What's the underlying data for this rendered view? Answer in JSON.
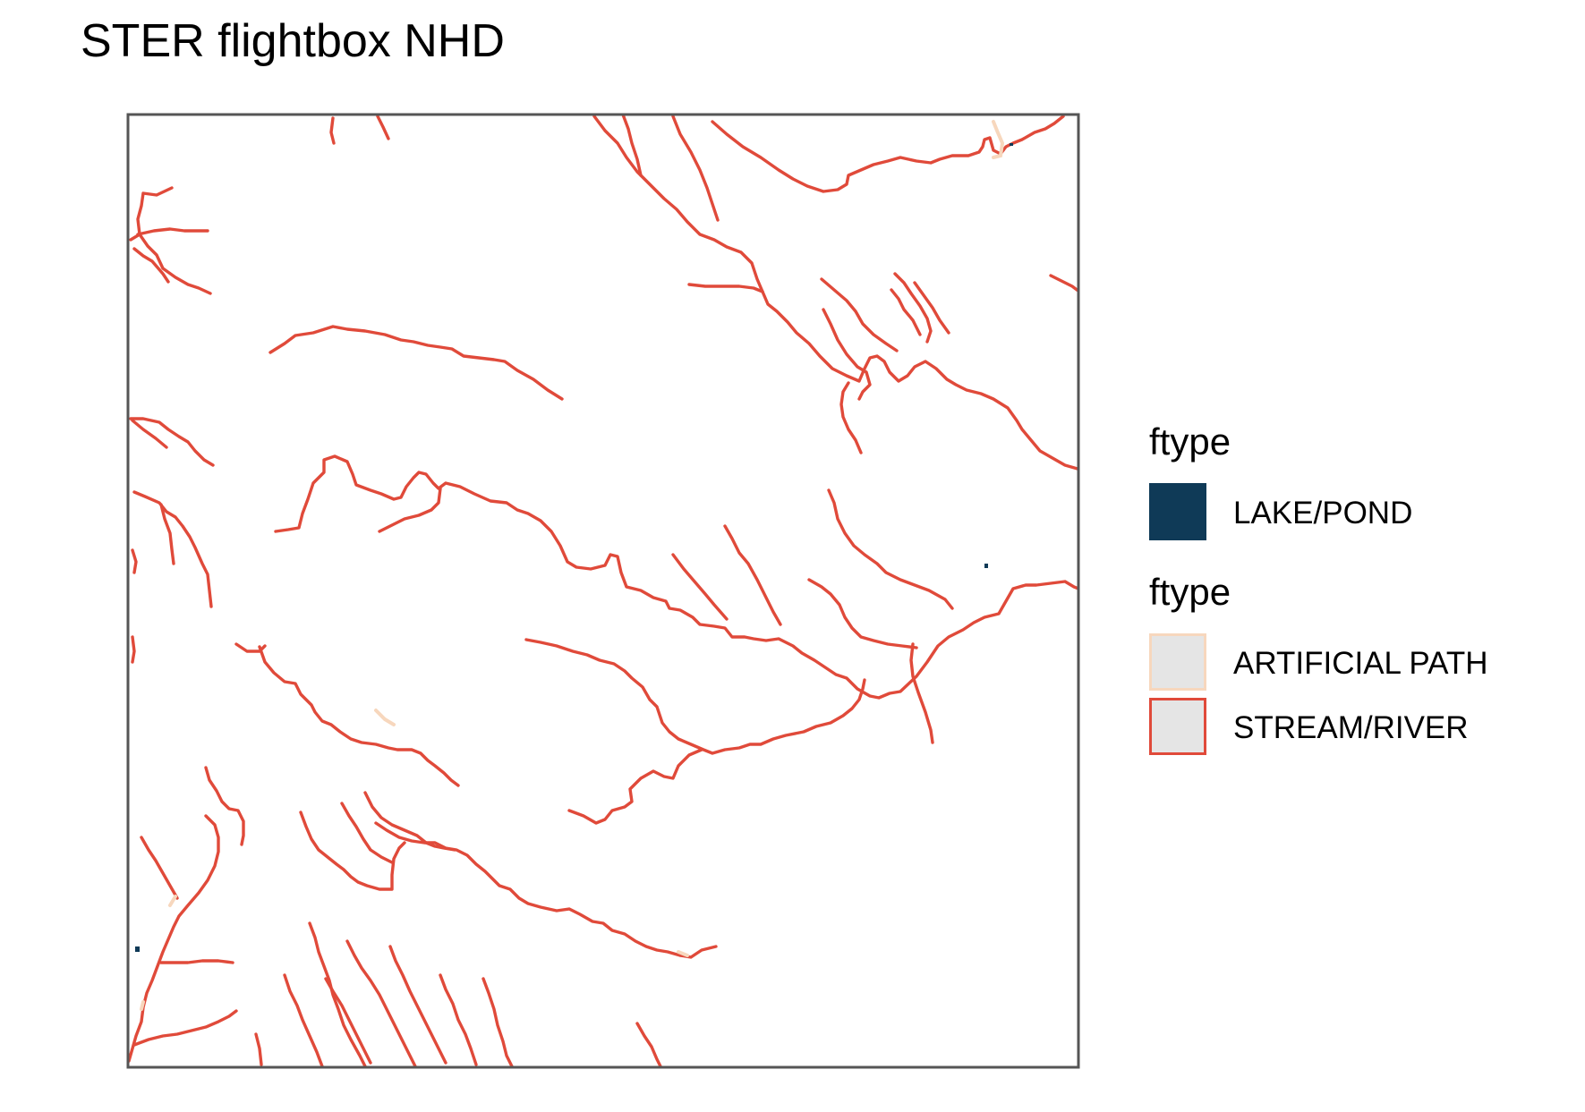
{
  "title": "STER flightbox NHD",
  "legend": {
    "groups": [
      {
        "title": "ftype",
        "items": [
          {
            "label": "LAKE/POND",
            "fill": "#0f3a57",
            "stroke": "#0f3a57"
          }
        ]
      },
      {
        "title": "ftype",
        "items": [
          {
            "label": "ARTIFICIAL PATH",
            "fill": "#e5e5e5",
            "stroke": "#f7d7bd"
          },
          {
            "label": "STREAM/RIVER",
            "fill": "#e5e5e5",
            "stroke": "#e04a3a"
          }
        ]
      }
    ]
  },
  "colors": {
    "stream": "#e04a3a",
    "artificial_path": "#f7d7bd",
    "lake": "#0f3a57",
    "panel_border": "#555555"
  }
}
